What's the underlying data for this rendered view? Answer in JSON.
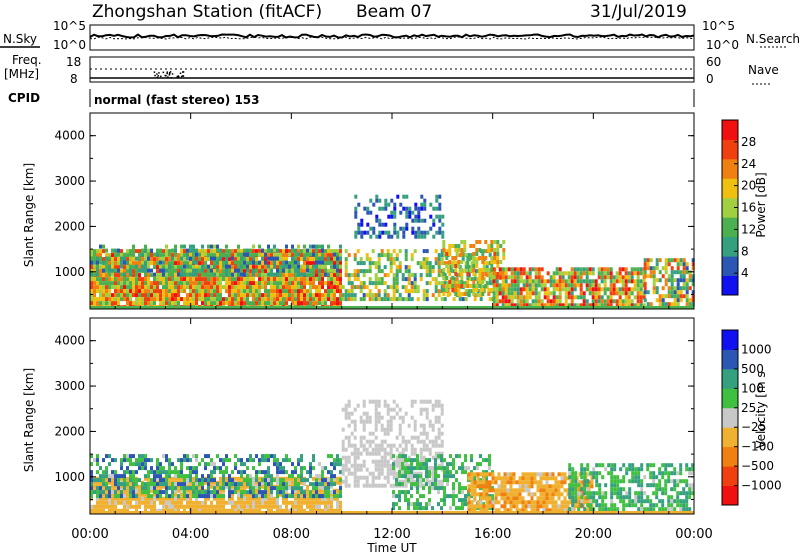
{
  "header": {
    "station": "Zhongshan Station (fitACF)",
    "beam": "Beam 07",
    "date": "31/Jul/2019"
  },
  "top_panels": {
    "nsky_label": "N.Sky",
    "nsky_ticks": [
      "10^5",
      "10^0"
    ],
    "nsearch_label": "N.Search",
    "nsearch_ticks": [
      "10^5",
      "10^0"
    ],
    "freq_label": "Freq.",
    "freq_unit": "[MHz]",
    "freq_ticks": [
      "18",
      "8"
    ],
    "nave_label": "Nave",
    "nave_ticks": [
      "60",
      "0"
    ],
    "cpid_label": "CPID",
    "cpid_text": "normal (fast stereo) 153"
  },
  "colors": {
    "power": [
      "#1010f0",
      "#2c56b4",
      "#34a080",
      "#4cb050",
      "#a0d040",
      "#f0c010",
      "#f08010",
      "#f04010",
      "#f01010"
    ],
    "velocity": [
      "#f01010",
      "#f04010",
      "#f08010",
      "#f0b030",
      "#c8c8c8",
      "#40c040",
      "#34a080",
      "#2c56b4",
      "#1010f0"
    ]
  },
  "chart_data": [
    {
      "type": "heatmap",
      "name": "Power",
      "ylabel": "Slant Range [km]",
      "yticks": [
        "4000",
        "3000",
        "2000",
        "1000"
      ],
      "ylim": [
        180,
        4500
      ],
      "xlim": [
        0,
        24
      ],
      "colorbar_label": "Power [dB]",
      "colorbar_ticks": [
        "28",
        "24",
        "20",
        "16",
        "12",
        "8",
        "4"
      ],
      "colorbar_range": [
        0,
        30
      ],
      "blobs": [
        {
          "x": [
            0.0,
            10.0
          ],
          "y": [
            250,
            1500
          ],
          "min": 10,
          "max": 28,
          "density": 0.95,
          "fade": 1.0
        },
        {
          "x": [
            0.0,
            10.0
          ],
          "y": [
            900,
            1600
          ],
          "min": 4,
          "max": 14,
          "density": 0.6,
          "fade": 0.6
        },
        {
          "x": [
            10.0,
            16.0
          ],
          "y": [
            400,
            1500
          ],
          "min": 6,
          "max": 22,
          "density": 0.6,
          "fade": 0.8
        },
        {
          "x": [
            10.5,
            14.0
          ],
          "y": [
            1800,
            2700
          ],
          "min": 2,
          "max": 10,
          "density": 0.55,
          "fade": 0.5
        },
        {
          "x": [
            14.0,
            16.5
          ],
          "y": [
            500,
            1700
          ],
          "min": 10,
          "max": 24,
          "density": 0.6,
          "fade": 0.8
        },
        {
          "x": [
            16.0,
            22.0
          ],
          "y": [
            300,
            1100
          ],
          "min": 8,
          "max": 28,
          "density": 0.85,
          "fade": 0.9
        },
        {
          "x": [
            22.0,
            24.0
          ],
          "y": [
            250,
            1300
          ],
          "min": 4,
          "max": 26,
          "density": 0.7,
          "fade": 0.8
        }
      ]
    },
    {
      "type": "heatmap",
      "name": "Velocity",
      "ylabel": "Slant Range [km]",
      "yticks": [
        "4000",
        "3000",
        "2000",
        "1000"
      ],
      "ylim": [
        180,
        4500
      ],
      "xlim": [
        0,
        24
      ],
      "colorbar_label": "Velocity [m s",
      "colorbar_ticks": [
        "1000",
        "500",
        "100",
        "25",
        "−25",
        "−100",
        "−500",
        "−1000"
      ],
      "colorbar_range": [
        -1200,
        1200
      ],
      "blobs": [
        {
          "x": [
            0.0,
            10.0
          ],
          "y": [
            250,
            1000
          ],
          "min": -400,
          "max": -80,
          "density": 0.85,
          "fade": 1.0
        },
        {
          "x": [
            0.0,
            10.0
          ],
          "y": [
            600,
            1500
          ],
          "min": 100,
          "max": 900,
          "density": 0.7,
          "fade": 0.7
        },
        {
          "x": [
            10.0,
            14.0
          ],
          "y": [
            800,
            2700
          ],
          "min": -20,
          "max": 20,
          "density": 0.7,
          "fade": 0.5
        },
        {
          "x": [
            12.0,
            16.0
          ],
          "y": [
            300,
            1500
          ],
          "min": 100,
          "max": 600,
          "density": 0.6,
          "fade": 0.7
        },
        {
          "x": [
            15.0,
            20.0
          ],
          "y": [
            300,
            1100
          ],
          "min": -500,
          "max": -100,
          "density": 0.8,
          "fade": 1.0
        },
        {
          "x": [
            19.0,
            24.0
          ],
          "y": [
            250,
            1300
          ],
          "min": 100,
          "max": 600,
          "density": 0.7,
          "fade": 0.8
        }
      ]
    }
  ],
  "x_axis": {
    "ticks": [
      "00:00",
      "04:00",
      "08:00",
      "12:00",
      "16:00",
      "20:00",
      "00:00"
    ],
    "label": "Time UT"
  }
}
